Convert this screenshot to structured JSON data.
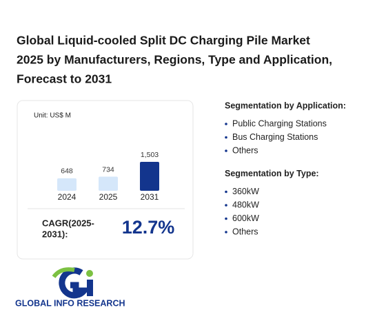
{
  "header": {
    "title_lines": [
      "Global Liquid-cooled Split DC Charging Pile Market",
      "2025 by Manufacturers, Regions, Type and Application,",
      "Forecast to 2031"
    ]
  },
  "chart_data": {
    "type": "bar",
    "unit": "Unit: US$ M",
    "categories": [
      "2024",
      "2025",
      "2031"
    ],
    "values": [
      648,
      734,
      1503
    ],
    "value_labels": [
      "648",
      "734",
      "1,503"
    ],
    "colors": [
      "#d5e7fa",
      "#d5e7fa",
      "#13358d"
    ],
    "cagr_label_lines": [
      "CAGR(2025-",
      "2031):"
    ],
    "cagr_value": "12.7%"
  },
  "segments": [
    {
      "heading": "Segmentation by Application:",
      "items": [
        "Public Charging Stations",
        "Bus Charging Stations",
        "Others"
      ]
    },
    {
      "heading": "Segmentation by Type:",
      "items": [
        "360kW",
        "480kW",
        "600kW",
        "Others"
      ]
    }
  ],
  "brand": "GLOBAL INFO RESEARCH"
}
